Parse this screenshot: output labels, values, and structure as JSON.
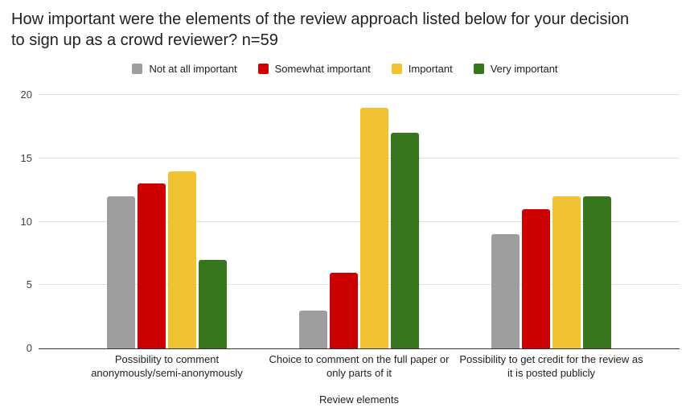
{
  "title": "How important were the elements of the review approach listed below for your decision to sign up as a crowd reviewer? n=59",
  "chart_data": {
    "type": "bar",
    "title": "How important were the elements of the review approach listed below for your decision to sign up as a crowd reviewer? n=59",
    "categories": [
      "Possibility to comment anonymously/semi-anonymously",
      "Choice to comment on the full paper or only parts of it",
      "Possibility to get credit for the review as it is posted publicly"
    ],
    "series": [
      {
        "name": "Not at all important",
        "color": "#9e9e9e",
        "values": [
          12,
          3,
          9
        ]
      },
      {
        "name": "Somewhat important",
        "color": "#cc0000",
        "values": [
          13,
          6,
          11
        ]
      },
      {
        "name": "Important",
        "color": "#f1c232",
        "values": [
          14,
          19,
          12
        ]
      },
      {
        "name": "Very important",
        "color": "#38761d",
        "values": [
          7,
          17,
          12
        ]
      }
    ],
    "xlabel": "Review elements",
    "ylabel": "",
    "ylim": [
      0,
      20
    ],
    "yticks": [
      0,
      5,
      10,
      15,
      20
    ],
    "grid": true,
    "legend_position": "top",
    "colors": {
      "grid": "#e0e0e0",
      "axis": "#333333",
      "text": "#212121",
      "tick_text": "#424242",
      "background": "#ffffff"
    }
  }
}
